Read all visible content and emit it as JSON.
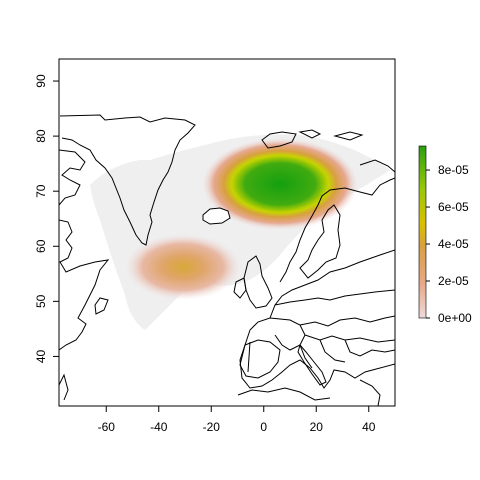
{
  "chart_data": {
    "type": "heatmap",
    "title": "",
    "xlabel": "",
    "ylabel": "",
    "xlim": [
      -78,
      50
    ],
    "ylim": [
      31,
      94
    ],
    "x_ticks": [
      -60,
      -40,
      -20,
      0,
      20,
      40
    ],
    "y_ticks": [
      40,
      50,
      60,
      70,
      80,
      90
    ],
    "grid": false,
    "basemap": "world country borders (North Atlantic / Europe)",
    "density_peaks": [
      {
        "lon": 7,
        "lat": 71,
        "value": 9e-05,
        "description": "strong peak north of Scandinavia / Norwegian Sea"
      },
      {
        "lon": -30,
        "lat": 56,
        "value": 2.8e-05,
        "description": "secondary peak south of Greenland / mid North Atlantic"
      }
    ],
    "colorbar": {
      "labels": [
        "0e+00",
        "2e-05",
        "4e-05",
        "6e-05",
        "8e-05"
      ],
      "values": [
        0,
        2e-05,
        4e-05,
        6e-05,
        8e-05
      ],
      "max": 9.3e-05,
      "palette": [
        "#eedada",
        "#e8a888",
        "#d9a040",
        "#d8c000",
        "#98c808",
        "#2aa010"
      ]
    }
  }
}
